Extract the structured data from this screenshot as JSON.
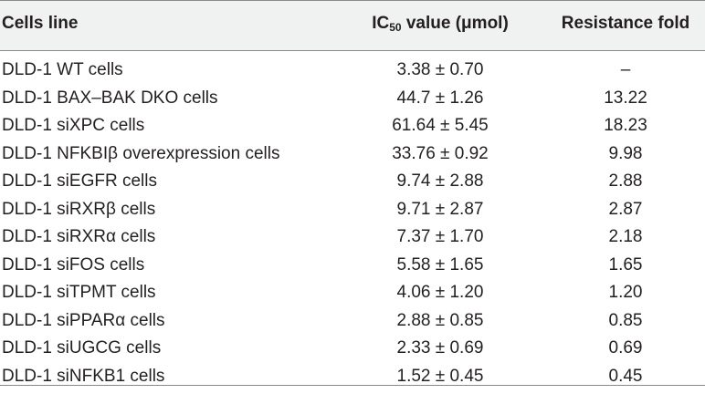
{
  "table": {
    "headers": {
      "cells_line": "Cells line",
      "ic50_prefix": "IC",
      "ic50_sub": "50",
      "ic50_suffix": " value (μmol)",
      "resistance_fold": "Resistance fold"
    },
    "rows": [
      {
        "cells_line": "DLD-1 WT cells",
        "ic50": "3.38 ± 0.70",
        "fold": "–"
      },
      {
        "cells_line": "DLD-1 BAX–BAK DKO cells",
        "ic50": "44.7 ± 1.26",
        "fold": "13.22"
      },
      {
        "cells_line": "DLD-1 siXPC cells",
        "ic50": "61.64 ± 5.45",
        "fold": "18.23"
      },
      {
        "cells_line": "DLD-1 NFKBIβ overexpression cells",
        "ic50": "33.76 ± 0.92",
        "fold": "9.98"
      },
      {
        "cells_line": "DLD-1 siEGFR cells",
        "ic50": "9.74 ± 2.88",
        "fold": "2.88"
      },
      {
        "cells_line": "DLD-1 siRXRβ cells",
        "ic50": "9.71 ± 2.87",
        "fold": "2.87"
      },
      {
        "cells_line": "DLD-1 siRXRα cells",
        "ic50": "7.37 ± 1.70",
        "fold": "2.18"
      },
      {
        "cells_line": "DLD-1 siFOS cells",
        "ic50": "5.58 ± 1.65",
        "fold": "1.65"
      },
      {
        "cells_line": "DLD-1 siTPMT cells",
        "ic50": "4.06 ± 1.20",
        "fold": "1.20"
      },
      {
        "cells_line": "DLD-1 siPPARα cells",
        "ic50": "2.88 ± 0.85",
        "fold": "0.85"
      },
      {
        "cells_line": "DLD-1 siUGCG cells",
        "ic50": "2.33 ± 0.69",
        "fold": "0.69"
      },
      {
        "cells_line": "DLD-1 siNFKB1 cells",
        "ic50": "1.52 ± 0.45",
        "fold": "0.45"
      }
    ]
  }
}
